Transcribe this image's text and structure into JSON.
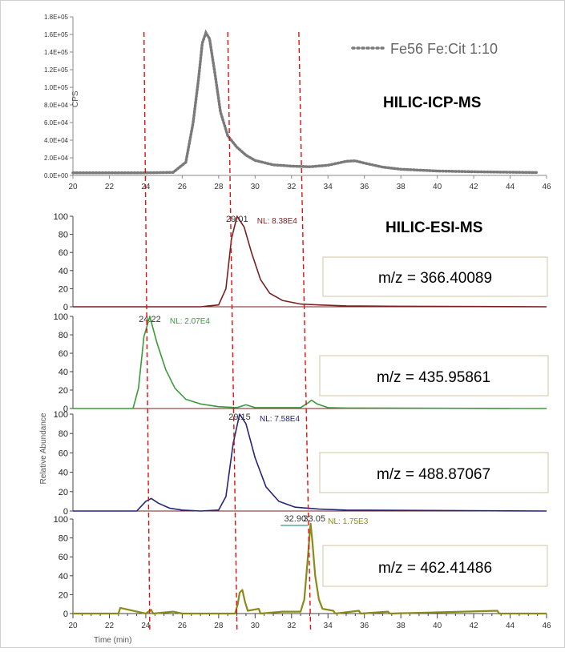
{
  "chart_data": [
    {
      "type": "line",
      "panel": "icp",
      "title": "HILIC-ICP-MS",
      "ylabel": "CPS",
      "xlabel": "",
      "xlim": [
        20,
        46
      ],
      "ylim": [
        0,
        180000
      ],
      "x_ticks": [
        "20",
        "22",
        "24",
        "26",
        "28",
        "30",
        "32",
        "34",
        "36",
        "38",
        "40",
        "42",
        "44",
        "46"
      ],
      "y_ticks": [
        "0.0E+00",
        "2.0E+04",
        "4.0E+04",
        "6.0E+04",
        "8.0E+04",
        "1.0E+05",
        "1.2E+05",
        "1.4E+05",
        "1.6E+05",
        "1.8E+05"
      ],
      "legend": "top-right",
      "series": [
        {
          "name": "Fe56 Fe:Cit 1:10",
          "color": "#7a7a7a",
          "style": "dotted",
          "x": [
            20,
            22,
            24,
            25.5,
            26.2,
            26.6,
            26.9,
            27.1,
            27.3,
            27.5,
            27.8,
            28.1,
            28.5,
            29,
            29.5,
            30,
            31,
            32,
            33,
            34,
            35,
            35.5,
            36,
            37,
            38,
            40,
            42,
            44,
            45.5
          ],
          "y": [
            3000,
            3000,
            3000,
            3500,
            15000,
            60000,
            110000,
            150000,
            162000,
            155000,
            115000,
            72000,
            45000,
            32000,
            23000,
            17000,
            12000,
            10500,
            9800,
            11500,
            16000,
            16500,
            14000,
            9500,
            7000,
            5000,
            4200,
            3600,
            3300
          ]
        }
      ]
    },
    {
      "type": "line",
      "panel": "esi-1",
      "title": "HILIC-ESI-MS",
      "mz_label": "m/z = 366.40089",
      "nl_label": "NL: 8.38E4",
      "peak_label": "29.01",
      "peak_x": 29.01,
      "xlim": [
        20,
        46
      ],
      "ylim": [
        0,
        100
      ],
      "y_ticks": [
        "0",
        "20",
        "40",
        "60",
        "80",
        "100"
      ],
      "series": [
        {
          "name": "",
          "color": "#7a1f1f",
          "x": [
            20,
            27,
            28.0,
            28.4,
            28.7,
            29.01,
            29.4,
            29.8,
            30.3,
            30.8,
            31.5,
            32.5,
            33.5,
            35,
            38,
            46
          ],
          "y": [
            0,
            0,
            2,
            20,
            75,
            100,
            88,
            60,
            30,
            15,
            7,
            3,
            2,
            1,
            0.5,
            0
          ]
        }
      ]
    },
    {
      "type": "line",
      "panel": "esi-2",
      "mz_label": "m/z = 435.95861",
      "nl_label": "NL: 2.07E4",
      "peak_label": "24.22",
      "peak_x": 24.22,
      "xlim": [
        20,
        46
      ],
      "ylim": [
        0,
        100
      ],
      "y_ticks": [
        "0",
        "20",
        "40",
        "60",
        "80",
        "100"
      ],
      "series": [
        {
          "name": "",
          "color": "#3a9a3a",
          "x": [
            20,
            23.3,
            23.6,
            23.9,
            24.22,
            24.6,
            25.1,
            25.6,
            26.2,
            27,
            28,
            29,
            29.5,
            30,
            31,
            32.5,
            32.9,
            33.1,
            33.4,
            34,
            35,
            46
          ],
          "y": [
            0,
            0,
            22,
            78,
            100,
            72,
            42,
            22,
            10,
            5,
            2,
            1,
            4,
            1,
            1,
            1,
            6,
            9,
            5,
            1,
            0.5,
            0
          ]
        }
      ]
    },
    {
      "type": "line",
      "panel": "esi-3",
      "mz_label": "m/z = 488.87067",
      "nl_label": "NL: 7.58E4",
      "peak_label": "29.15",
      "peak_x": 29.15,
      "xlim": [
        20,
        46
      ],
      "ylim": [
        0,
        100
      ],
      "y_ticks": [
        "0",
        "20",
        "40",
        "60",
        "80",
        "100"
      ],
      "series": [
        {
          "name": "",
          "color": "#25257a",
          "x": [
            20,
            23.5,
            24.0,
            24.3,
            24.7,
            25.3,
            26,
            27,
            28.0,
            28.4,
            28.8,
            29.15,
            29.5,
            30.0,
            30.6,
            31.3,
            32.2,
            33.5,
            35,
            46
          ],
          "y": [
            0,
            0,
            10,
            13,
            8,
            3,
            1,
            0,
            1,
            15,
            70,
            100,
            90,
            55,
            25,
            10,
            4,
            2,
            1,
            0
          ]
        }
      ]
    },
    {
      "type": "line",
      "panel": "esi-4",
      "mz_label": "m/z = 462.41486",
      "nl_label": "NL: 1.75E3",
      "peak_labels": [
        "32.90",
        "33.05"
      ],
      "peak_x": 33.05,
      "xlabel": "Time (min)",
      "ylabel": "Relative Abundance",
      "xlim": [
        20,
        46
      ],
      "ylim": [
        0,
        100
      ],
      "x_ticks": [
        "20",
        "22",
        "24",
        "26",
        "28",
        "30",
        "32",
        "34",
        "36",
        "38",
        "40",
        "42",
        "44",
        "46"
      ],
      "y_ticks": [
        "0",
        "20",
        "40",
        "60",
        "80",
        "100"
      ],
      "series": [
        {
          "name": "",
          "color": "#8a8a1a",
          "x": [
            20,
            22.5,
            22.6,
            24,
            24.3,
            24.4,
            25.5,
            26,
            28.9,
            29.05,
            29.15,
            29.3,
            29.45,
            29.6,
            30.2,
            30.3,
            31.5,
            32.5,
            32.7,
            32.9,
            33.0,
            33.05,
            33.15,
            33.3,
            33.5,
            33.7,
            34.3,
            34.4,
            35.7,
            35.8,
            37.3,
            37.4,
            43.3,
            43.4,
            46
          ],
          "y": [
            0,
            0,
            6,
            0,
            4,
            0,
            2,
            0,
            0,
            10,
            22,
            25,
            12,
            3,
            5,
            0,
            2,
            2,
            15,
            60,
            85,
            95,
            75,
            40,
            15,
            5,
            3,
            0,
            3,
            0,
            2,
            0,
            3,
            0,
            0
          ]
        }
      ]
    }
  ],
  "ref_lines_x": [
    24.22,
    29.01,
    33.05
  ],
  "ref_line_color": "#e01010"
}
